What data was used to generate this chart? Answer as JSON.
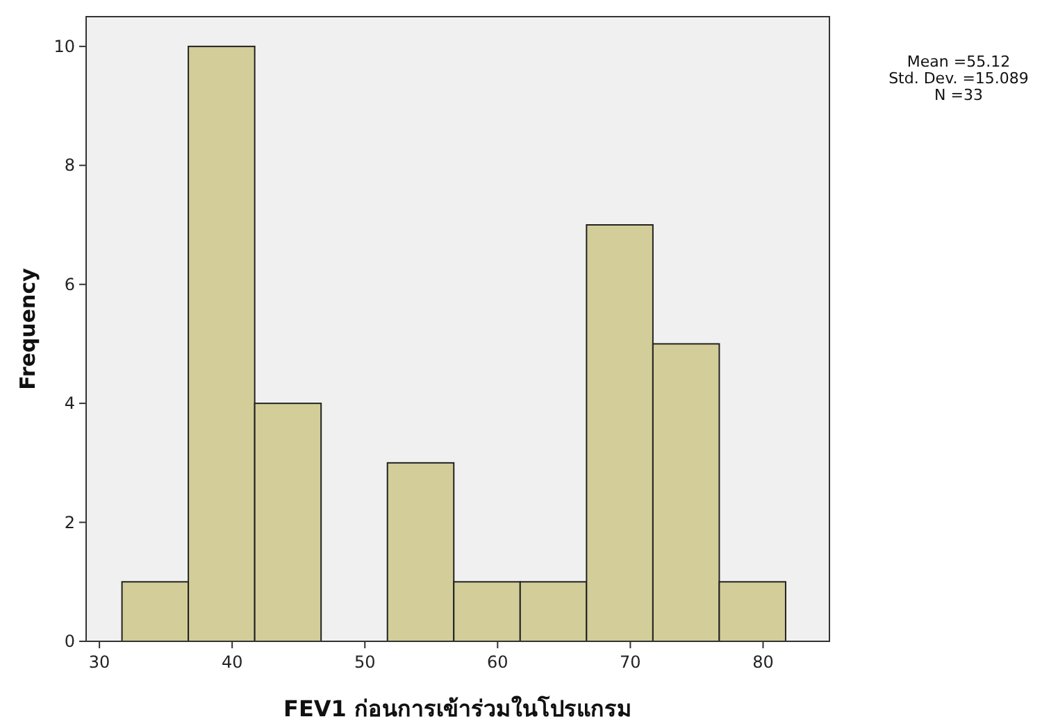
{
  "chart_data": {
    "type": "histogram",
    "xlabel": "FEV1 ก่อนการเข้าร่วมในโปรแกรม",
    "ylabel": "Frequency",
    "bins": [
      31.7,
      36.7,
      41.7,
      46.7,
      51.7,
      56.7,
      61.7,
      66.7,
      71.7,
      76.7,
      81.7
    ],
    "values": [
      1,
      10,
      4,
      0,
      3,
      1,
      1,
      7,
      5,
      1
    ],
    "color": "#d3ce99",
    "xlim": [
      29,
      85
    ],
    "xticks": [
      30,
      40,
      50,
      60,
      70,
      80
    ],
    "ylim": [
      0,
      10.5
    ],
    "yticks": [
      0,
      2,
      4,
      6,
      8,
      10
    ],
    "grid": false,
    "annotations": [
      "Mean =55.12",
      "Std. Dev. =15.089",
      "N =33"
    ]
  }
}
